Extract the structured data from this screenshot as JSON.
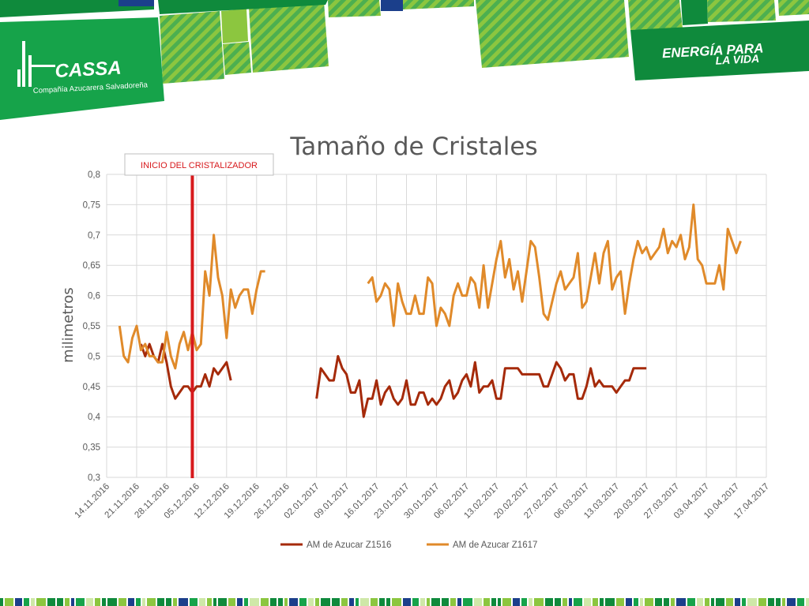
{
  "header": {
    "logo_name": "CASSA",
    "logo_subtitle": "Compañía Azucarera Salvadoreña",
    "slogan_line1": "ENERGÍA PARA",
    "slogan_line2": "LA VIDA",
    "colors": {
      "green_dark": "#0f8a3c",
      "green": "#16a34a",
      "lime": "#8cc63f",
      "blue": "#1b3f8b"
    }
  },
  "annotation": {
    "label": "INICIO DEL CRISTALIZADOR",
    "color": "#d7191c",
    "x": "04.12.2016"
  },
  "chart_data": {
    "type": "line",
    "title": "Tamaño de Cristales",
    "ylabel": "milimetros",
    "xlabel": "",
    "ylim": [
      0.3,
      0.8
    ],
    "yticks": [
      "0,3",
      "0,35",
      "0,4",
      "0,45",
      "0,5",
      "0,55",
      "0,6",
      "0,65",
      "0,7",
      "0,75",
      "0,8"
    ],
    "xlim": [
      "14.11.2016",
      "17.04.2017"
    ],
    "xticks": [
      "14.11.2016",
      "21.11.2016",
      "28.11.2016",
      "05.12.2016",
      "12.12.2016",
      "19.12.2016",
      "26.12.2016",
      "02.01.2017",
      "09.01.2017",
      "16.01.2017",
      "23.01.2017",
      "30.01.2017",
      "06.02.2017",
      "13.02.2017",
      "20.02.2017",
      "27.02.2017",
      "06.03.2017",
      "13.03.2017",
      "20.03.2017",
      "27.03.2017",
      "03.04.2017",
      "10.04.2017",
      "17.04.2017"
    ],
    "grid": true,
    "legend_position": "bottom",
    "series": [
      {
        "name": "AM de Azucar Z1516",
        "color": "#a52a0a",
        "segments": [
          {
            "start": "22.11.2016",
            "values": [
              0.52,
              0.5,
              0.52,
              0.5,
              0.49,
              0.52,
              0.49,
              0.45,
              0.43,
              0.44,
              0.45,
              0.45,
              0.44,
              0.45,
              0.45,
              0.47,
              0.45,
              0.48,
              0.47,
              0.48,
              0.49,
              0.46
            ]
          },
          {
            "start": "02.01.2017",
            "values": [
              0.43,
              0.48,
              0.47,
              0.46,
              0.46,
              0.5,
              0.48,
              0.47,
              0.44,
              0.44,
              0.46,
              0.4,
              0.43,
              0.43,
              0.46,
              0.42,
              0.44,
              0.45,
              0.43,
              0.42,
              0.43,
              0.46,
              0.42,
              0.42,
              0.44,
              0.44,
              0.42,
              0.43,
              0.42,
              0.43,
              0.45,
              0.46,
              0.43,
              0.44,
              0.46,
              0.47,
              0.45,
              0.49,
              0.44,
              0.45,
              0.45,
              0.46,
              0.43,
              0.43,
              0.48,
              0.48,
              0.48,
              0.48,
              0.47,
              0.47,
              0.47,
              0.47,
              0.47,
              0.45,
              0.45,
              0.47,
              0.49,
              0.48,
              0.46,
              0.47,
              0.47,
              0.43,
              0.43,
              0.45,
              0.48,
              0.45,
              0.46,
              0.45,
              0.45,
              0.45,
              0.44,
              0.45,
              0.46,
              0.46,
              0.48,
              0.48,
              0.48,
              0.48
            ]
          }
        ]
      },
      {
        "name": "AM de Azucar Z1617",
        "color": "#e08a2a",
        "segments": [
          {
            "start": "17.11.2016",
            "values": [
              0.55,
              0.5,
              0.49,
              0.53,
              0.55,
              0.51,
              0.52,
              0.5,
              0.5,
              0.49,
              0.49,
              0.54,
              0.5,
              0.48,
              0.52,
              0.54,
              0.51,
              0.54,
              0.51,
              0.52,
              0.64,
              0.6,
              0.7,
              0.63,
              0.6,
              0.53,
              0.61,
              0.58,
              0.6,
              0.61,
              0.61,
              0.57,
              0.61,
              0.64,
              0.64
            ]
          },
          {
            "start": "14.01.2017",
            "values": [
              0.62,
              0.63,
              0.59,
              0.6,
              0.62,
              0.61,
              0.55,
              0.62,
              0.59,
              0.57,
              0.57,
              0.6,
              0.57,
              0.57,
              0.63,
              0.62,
              0.55,
              0.58,
              0.57,
              0.55,
              0.6,
              0.62,
              0.6,
              0.6,
              0.63,
              0.62,
              0.58,
              0.65,
              0.58,
              0.62,
              0.66,
              0.69,
              0.63,
              0.66,
              0.61,
              0.64,
              0.59,
              0.64,
              0.69,
              0.68,
              0.63,
              0.57,
              0.56,
              0.59,
              0.62,
              0.64,
              0.61,
              0.62,
              0.63,
              0.67,
              0.58,
              0.59,
              0.63,
              0.67,
              0.62,
              0.67,
              0.69,
              0.61,
              0.63,
              0.64,
              0.57,
              0.62,
              0.66,
              0.69,
              0.67,
              0.68,
              0.66,
              0.67,
              0.68,
              0.71,
              0.67,
              0.69,
              0.68,
              0.7,
              0.66,
              0.68,
              0.75,
              0.66,
              0.65,
              0.62,
              0.62,
              0.62,
              0.65,
              0.61,
              0.71,
              0.69,
              0.67,
              0.69
            ]
          }
        ]
      }
    ]
  }
}
